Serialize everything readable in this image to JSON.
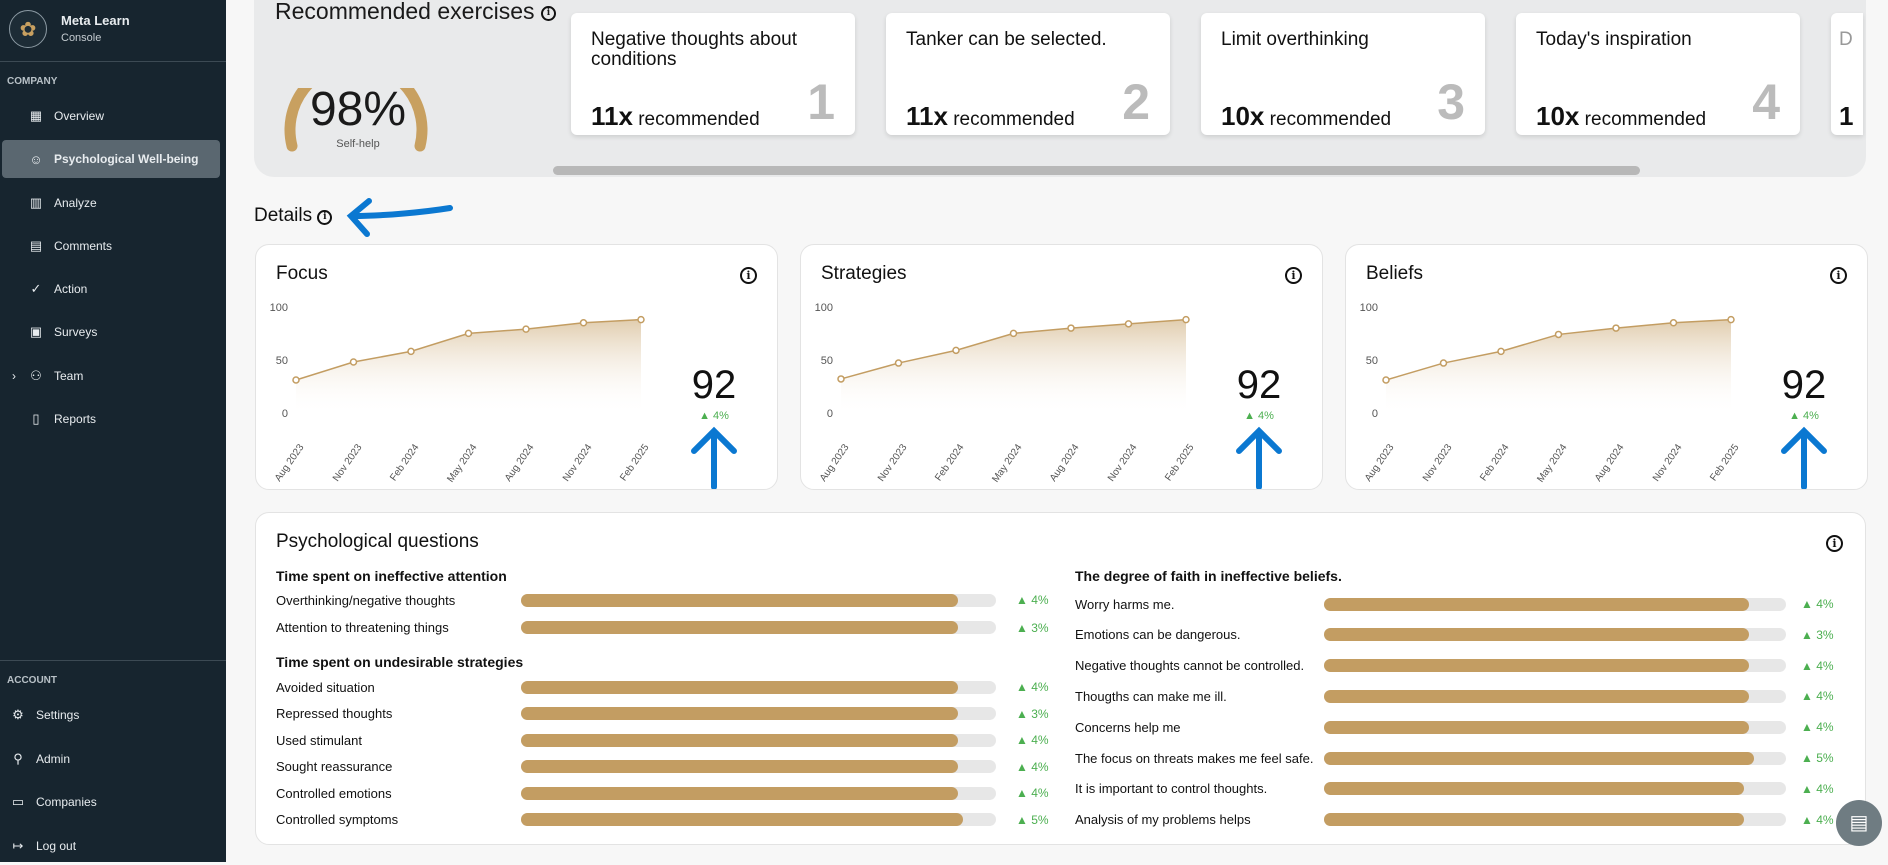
{
  "sidebar": {
    "brand": "Meta Learn",
    "sub": "Console",
    "company_header": "COMPANY",
    "account_header": "ACCOUNT",
    "items": [
      {
        "label": "Overview",
        "icon": "grid-icon"
      },
      {
        "label": "Psychological Well-being",
        "icon": "head-icon"
      },
      {
        "label": "Analyze",
        "icon": "bar-chart-icon"
      },
      {
        "label": "Comments",
        "icon": "comment-icon"
      },
      {
        "label": "Action",
        "icon": "check-circle-icon"
      },
      {
        "label": "Surveys",
        "icon": "clipboard-icon"
      },
      {
        "label": "Team",
        "icon": "users-icon"
      },
      {
        "label": "Reports",
        "icon": "document-icon"
      }
    ],
    "account": [
      {
        "label": "Settings"
      },
      {
        "label": "Admin"
      },
      {
        "label": "Companies"
      },
      {
        "label": "Log out"
      }
    ]
  },
  "recommended": {
    "title": "Recommended exercises",
    "gauge_value": "98%",
    "gauge_percent": 98,
    "gauge_label": "Self-help",
    "cards": [
      {
        "title": "Negative thoughts about conditions",
        "count": "11x",
        "suffix": "recommended",
        "rank": "1"
      },
      {
        "title": "Tanker can be selected.",
        "count": "11x",
        "suffix": "recommended",
        "rank": "2"
      },
      {
        "title": "Limit overthinking",
        "count": "10x",
        "suffix": "recommended",
        "rank": "3"
      },
      {
        "title": "Today's inspiration",
        "count": "10x",
        "suffix": "recommended",
        "rank": "4"
      },
      {
        "title": "D",
        "count": "1",
        "suffix": "",
        "rank": ""
      }
    ]
  },
  "details": {
    "title": "Details"
  },
  "chart_data": [
    {
      "type": "area",
      "title": "Focus",
      "categories": [
        "Aug 2023",
        "Nov 2023",
        "Feb 2024",
        "May 2024",
        "Aug 2024",
        "Nov 2024",
        "Feb 2025"
      ],
      "values": [
        33,
        50,
        60,
        77,
        81,
        87,
        90
      ],
      "ylim": [
        0,
        100
      ],
      "yticks": [
        "0",
        "50",
        "100"
      ],
      "score": "92",
      "change": "▲ 4%"
    },
    {
      "type": "area",
      "title": "Strategies",
      "categories": [
        "Aug 2023",
        "Nov 2023",
        "Feb 2024",
        "May 2024",
        "Aug 2024",
        "Nov 2024",
        "Feb 2025"
      ],
      "values": [
        34,
        49,
        61,
        77,
        82,
        86,
        90
      ],
      "ylim": [
        0,
        100
      ],
      "yticks": [
        "0",
        "50",
        "100"
      ],
      "score": "92",
      "change": "▲ 4%"
    },
    {
      "type": "area",
      "title": "Beliefs",
      "categories": [
        "Aug 2023",
        "Nov 2023",
        "Feb 2024",
        "May 2024",
        "Aug 2024",
        "Nov 2024",
        "Feb 2025"
      ],
      "values": [
        33,
        49,
        60,
        76,
        82,
        87,
        90
      ],
      "ylim": [
        0,
        100
      ],
      "yticks": [
        "0",
        "50",
        "100"
      ],
      "score": "92",
      "change": "▲ 4%"
    }
  ],
  "questions": {
    "title": "Psychological questions",
    "groups": [
      {
        "title": "Time spent on ineffective attention",
        "rows": [
          {
            "label": "Overthinking/negative thoughts",
            "value": 92,
            "change": "▲ 4%"
          },
          {
            "label": "Attention to threatening things",
            "value": 92,
            "change": "▲ 3%"
          }
        ]
      },
      {
        "title": "Time spent on undesirable strategies",
        "rows": [
          {
            "label": "Avoided situation",
            "value": 92,
            "change": "▲ 4%"
          },
          {
            "label": "Repressed thoughts",
            "value": 92,
            "change": "▲ 3%"
          },
          {
            "label": "Used stimulant",
            "value": 92,
            "change": "▲ 4%"
          },
          {
            "label": "Sought reassurance",
            "value": 92,
            "change": "▲ 4%"
          },
          {
            "label": "Controlled emotions",
            "value": 92,
            "change": "▲ 4%"
          },
          {
            "label": "Controlled symptoms",
            "value": 93,
            "change": "▲ 5%"
          }
        ]
      },
      {
        "title": "The degree of faith in ineffective beliefs.",
        "rows": [
          {
            "label": "Worry harms me.",
            "value": 92,
            "change": "▲ 4%"
          },
          {
            "label": "Emotions can be dangerous.",
            "value": 92,
            "change": "▲ 3%"
          },
          {
            "label": "Negative thoughts cannot be controlled.",
            "value": 92,
            "change": "▲ 4%"
          },
          {
            "label": "Thougths can make me ill.",
            "value": 92,
            "change": "▲ 4%"
          },
          {
            "label": "Concerns help me",
            "value": 92,
            "change": "▲ 4%"
          },
          {
            "label": "The focus on threats makes me feel safe.",
            "value": 93,
            "change": "▲ 5%"
          },
          {
            "label": "It is important to control thoughts.",
            "value": 91,
            "change": "▲ 4%"
          },
          {
            "label": "Analysis of my problems helps",
            "value": 91,
            "change": "▲ 4%"
          }
        ]
      }
    ]
  }
}
